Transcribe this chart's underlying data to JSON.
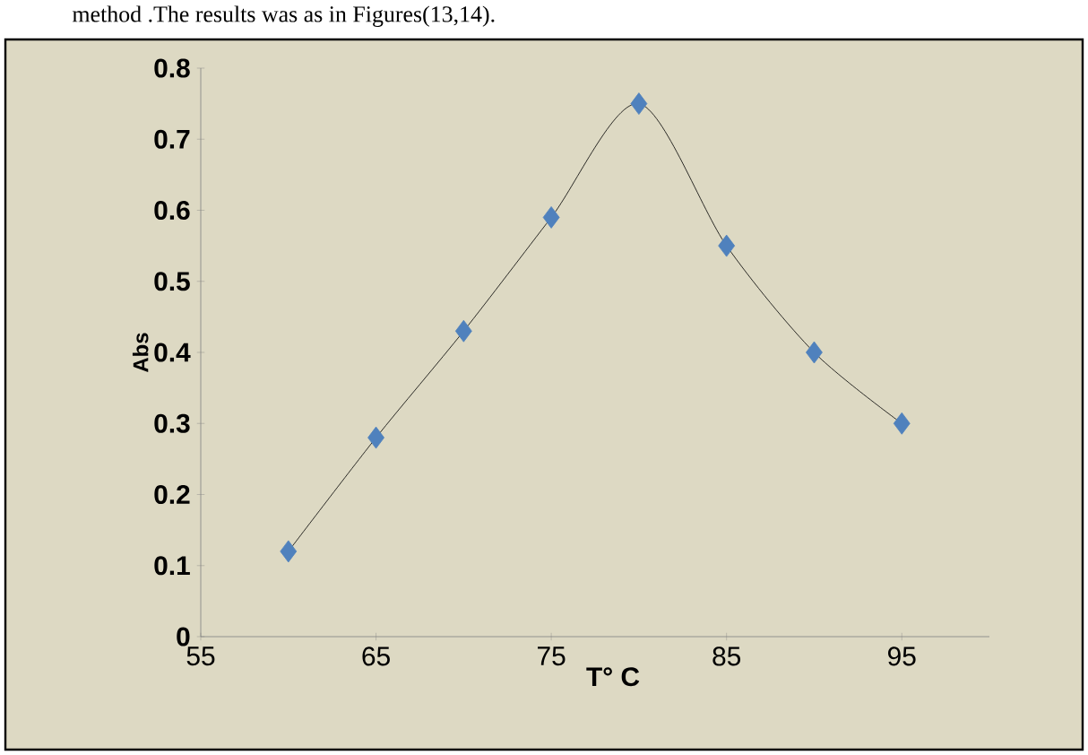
{
  "chart_data": {
    "type": "line",
    "xlabel": "T° C",
    "ylabel": "Abs",
    "annotations": [
      "method .The results was as in Figures(13,14)."
    ],
    "x": [
      60,
      65,
      70,
      75,
      80,
      85,
      90,
      95
    ],
    "series": [
      {
        "color": "#4f81bd",
        "values": [
          0.12,
          0.28,
          0.43,
          0.59,
          0.75,
          0.55,
          0.4,
          0.3
        ]
      }
    ],
    "xlim": [
      55,
      100
    ],
    "xticks": [
      55,
      65,
      75,
      85,
      95
    ],
    "ylim": [
      0,
      0.8
    ],
    "yticks": [
      0,
      0.1,
      0.2,
      0.3,
      0.4,
      0.5,
      0.6,
      0.7,
      0.8
    ],
    "marker": "diamond",
    "grid": false
  }
}
